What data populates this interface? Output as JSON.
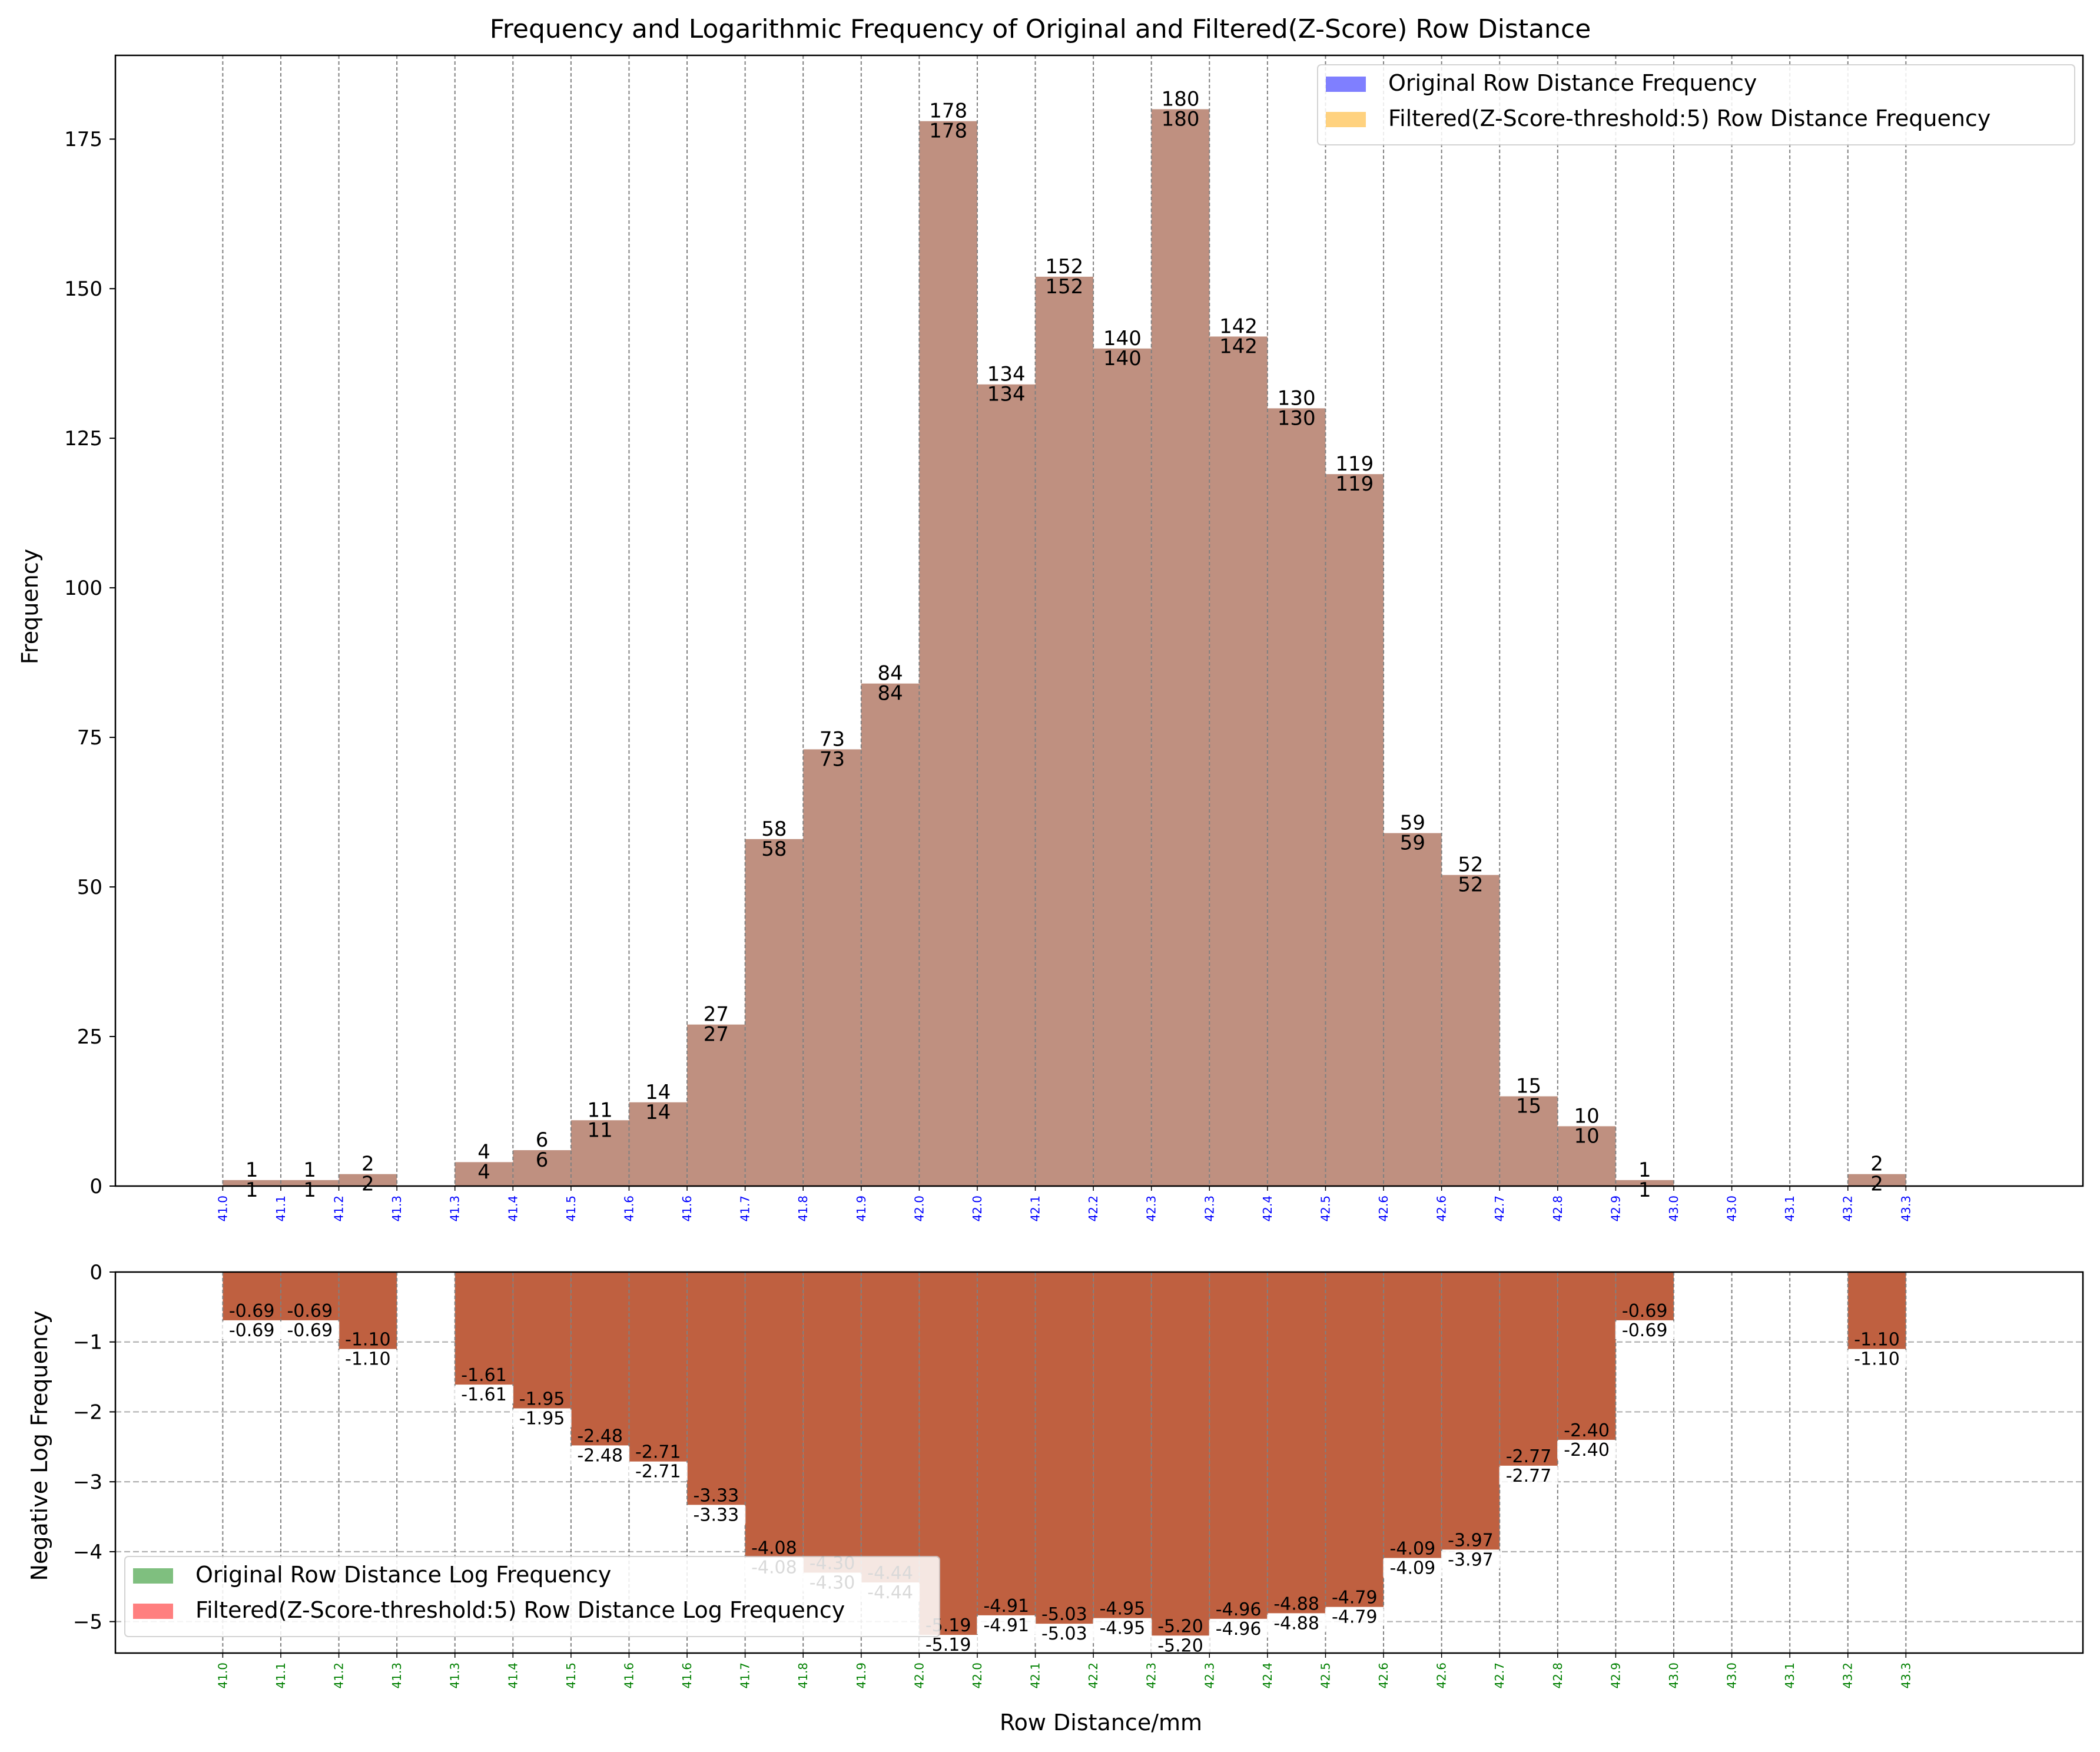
{
  "chart_data": [
    {
      "type": "bar",
      "title": "Frequency and Logarithmic Frequency of Original and Filtered(Z-Score) Row Distance",
      "ylabel": "Frequency",
      "xlabel": "",
      "ylim": [
        0,
        189
      ],
      "yticks": [
        0,
        25,
        50,
        75,
        100,
        125,
        150,
        175
      ],
      "xlim": [
        40.872,
        43.584
      ],
      "grid": "vertical dashed lines at bin edges",
      "legend_position": "top-right",
      "bin_edges": [
        41.02,
        41.1,
        41.18,
        41.26,
        41.34,
        41.42,
        41.5,
        41.58,
        41.66,
        41.74,
        41.82,
        41.9,
        41.98,
        42.06,
        42.14,
        42.22,
        42.3,
        42.38,
        42.46,
        42.54,
        42.62,
        42.7,
        42.78,
        42.86,
        42.94,
        43.02,
        43.1,
        43.18,
        43.26,
        43.34
      ],
      "xtick_labels": [
        "41.0",
        "41.1",
        "41.2",
        "41.3",
        "41.3",
        "41.4",
        "41.5",
        "41.6",
        "41.6",
        "41.7",
        "41.8",
        "41.9",
        "42.0",
        "42.0",
        "42.1",
        "42.2",
        "42.3",
        "42.3",
        "42.4",
        "42.5",
        "42.6",
        "42.6",
        "42.7",
        "42.8",
        "42.9",
        "43.0",
        "43.0",
        "43.1",
        "43.2",
        "43.3"
      ],
      "xtick_color": "#0000ff",
      "series": [
        {
          "name": "Original Row Distance Frequency",
          "color": "#0000ff",
          "alpha": 0.5,
          "values": [
            1,
            1,
            2,
            0,
            4,
            6,
            11,
            14,
            27,
            58,
            73,
            84,
            178,
            134,
            152,
            140,
            180,
            142,
            130,
            119,
            59,
            52,
            15,
            10,
            1,
            0,
            0,
            0,
            2
          ]
        },
        {
          "name": "Filtered(Z-Score-threshold:5) Row Distance Frequency",
          "color": "#ffa500",
          "alpha": 0.5,
          "values": [
            1,
            1,
            2,
            0,
            4,
            6,
            11,
            14,
            27,
            58,
            73,
            84,
            178,
            134,
            152,
            140,
            180,
            142,
            130,
            119,
            59,
            52,
            15,
            10,
            1,
            0,
            0,
            0,
            2
          ]
        }
      ],
      "combined_bar_color": "#bf9080",
      "top_labels": [
        "1",
        "1",
        "2",
        "",
        "4",
        "6",
        "11",
        "14",
        "27",
        "58",
        "73",
        "84",
        "178",
        "134",
        "152",
        "140",
        "180",
        "142",
        "130",
        "119",
        "59",
        "52",
        "15",
        "10",
        "1",
        "",
        "",
        "",
        "2"
      ],
      "inner_labels": [
        "1",
        "1",
        "2",
        "",
        "4",
        "6",
        "11",
        "14",
        "27",
        "58",
        "73",
        "84",
        "178",
        "134",
        "152",
        "140",
        "180",
        "142",
        "130",
        "119",
        "59",
        "52",
        "15",
        "10",
        "1",
        "",
        "",
        "",
        "2"
      ]
    },
    {
      "type": "bar",
      "title": "",
      "ylabel": "Negative Log Frequency",
      "xlabel": "Row Distance/mm",
      "ylim": [
        -5.45,
        0
      ],
      "yticks": [
        0,
        -1,
        -2,
        -3,
        -4,
        -5
      ],
      "ytick_labels": [
        "0",
        "−1",
        "−2",
        "−3",
        "−4",
        "−5"
      ],
      "xlim": [
        40.872,
        43.584
      ],
      "grid": "dashed gridlines on both axes",
      "legend_position": "lower-left",
      "bin_edges": [
        41.02,
        41.1,
        41.18,
        41.26,
        41.34,
        41.42,
        41.5,
        41.58,
        41.66,
        41.74,
        41.82,
        41.9,
        41.98,
        42.06,
        42.14,
        42.22,
        42.3,
        42.38,
        42.46,
        42.54,
        42.62,
        42.7,
        42.78,
        42.86,
        42.94,
        43.02,
        43.1,
        43.18,
        43.26,
        43.34
      ],
      "xtick_labels": [
        "41.0",
        "41.1",
        "41.2",
        "41.3",
        "41.3",
        "41.4",
        "41.5",
        "41.6",
        "41.6",
        "41.7",
        "41.8",
        "41.9",
        "42.0",
        "42.0",
        "42.1",
        "42.2",
        "42.3",
        "42.3",
        "42.4",
        "42.5",
        "42.6",
        "42.6",
        "42.7",
        "42.8",
        "42.9",
        "43.0",
        "43.0",
        "43.1",
        "43.2",
        "43.3"
      ],
      "xtick_color": "#008000",
      "series": [
        {
          "name": "Original Row Distance Log Frequency",
          "color": "#008000",
          "alpha": 0.5,
          "values": [
            -0.69,
            -0.69,
            -1.1,
            0,
            -1.61,
            -1.95,
            -2.48,
            -2.71,
            -3.33,
            -4.08,
            -4.3,
            -4.44,
            -5.19,
            -4.91,
            -5.03,
            -4.95,
            -5.2,
            -4.96,
            -4.88,
            -4.79,
            -4.09,
            -3.97,
            -2.77,
            -2.4,
            -0.69,
            0,
            0,
            0,
            -1.1
          ]
        },
        {
          "name": "Filtered(Z-Score-threshold:5) Row Distance Log Frequency",
          "color": "#ff0000",
          "alpha": 0.5,
          "values": [
            -0.69,
            -0.69,
            -1.1,
            0,
            -1.61,
            -1.95,
            -2.48,
            -2.71,
            -3.33,
            -4.08,
            -4.3,
            -4.44,
            -5.19,
            -4.91,
            -5.03,
            -4.95,
            -5.2,
            -4.96,
            -4.88,
            -4.79,
            -4.09,
            -3.97,
            -2.77,
            -2.4,
            -0.69,
            0,
            0,
            0,
            -1.1
          ]
        }
      ],
      "combined_bar_color": "#bf6040",
      "top_labels": [
        "-0.69",
        "-0.69",
        "-1.10",
        "",
        "-1.61",
        "-1.95",
        "-2.48",
        "-2.71",
        "-3.33",
        "-4.08",
        "-4.30",
        "-4.44",
        "-5.19",
        "-4.91",
        "-5.03",
        "-4.95",
        "-5.20",
        "-4.96",
        "-4.88",
        "-4.79",
        "-4.09",
        "-3.97",
        "-2.77",
        "-2.40",
        "-0.69",
        "",
        "",
        "",
        "-1.10"
      ],
      "inner_labels": [
        "-0.69",
        "-0.69",
        "-1.10",
        "",
        "-1.61",
        "-1.95",
        "-2.48",
        "-2.71",
        "-3.33",
        "-4.08",
        "-4.30",
        "-4.44",
        "-5.19",
        "-4.91",
        "-5.03",
        "-4.95",
        "-5.20",
        "-4.96",
        "-4.88",
        "-4.79",
        "-4.09",
        "-3.97",
        "-2.77",
        "-2.40",
        "-0.69",
        "",
        "",
        "",
        "-1.10"
      ]
    }
  ]
}
